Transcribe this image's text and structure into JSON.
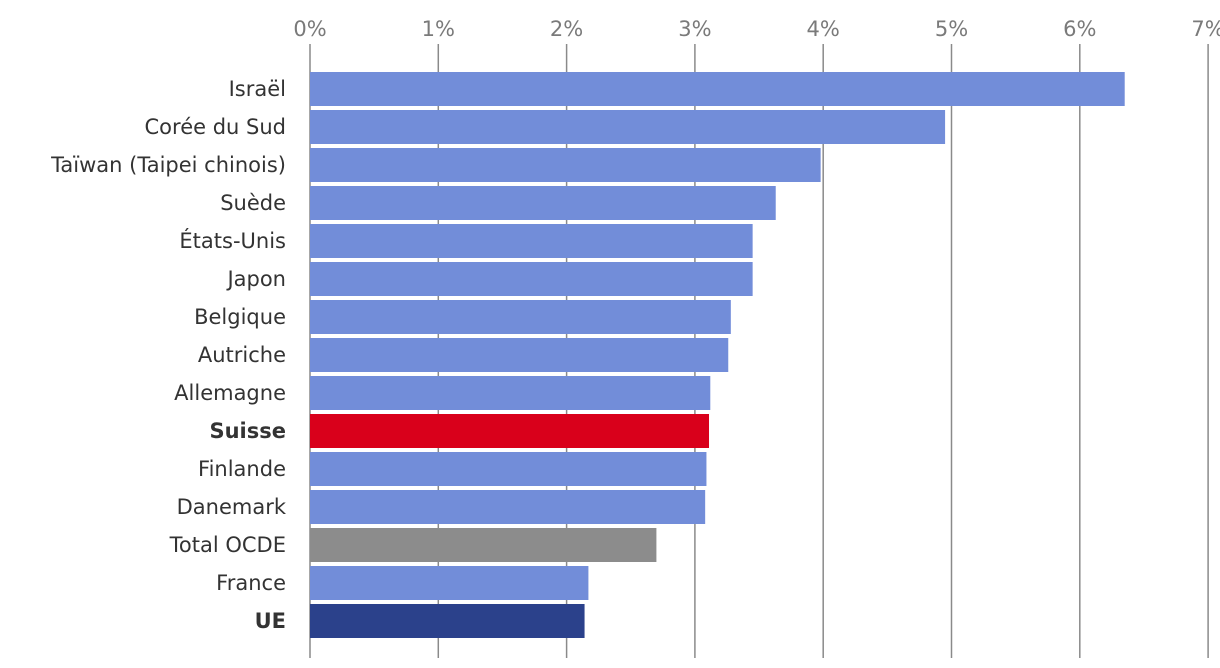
{
  "chart_data": {
    "type": "bar",
    "orientation": "horizontal",
    "title": "",
    "xlabel": "",
    "ylabel": "",
    "xlim": [
      0,
      7
    ],
    "x_ticks": [
      0,
      1,
      2,
      3,
      4,
      5,
      6,
      7
    ],
    "x_tick_labels": [
      "0%",
      "1%",
      "2%",
      "3%",
      "4%",
      "5%",
      "6%",
      "7%"
    ],
    "x_axis_position": "top",
    "grid": true,
    "legend": "none",
    "categories": [
      "Israël",
      "Corée du Sud",
      "Taïwan (Taipei chinois)",
      "Suède",
      "États-Unis",
      "Japon",
      "Belgique",
      "Autriche",
      "Allemagne",
      "Suisse",
      "Finlande",
      "Danemark",
      "Total OCDE",
      "France",
      "UE"
    ],
    "values": [
      6.35,
      4.95,
      3.98,
      3.63,
      3.45,
      3.45,
      3.28,
      3.26,
      3.12,
      3.11,
      3.09,
      3.08,
      2.7,
      2.17,
      2.14
    ],
    "bar_colors": [
      "#728dd9",
      "#728dd9",
      "#728dd9",
      "#728dd9",
      "#728dd9",
      "#728dd9",
      "#728dd9",
      "#728dd9",
      "#728dd9",
      "#d9001b",
      "#728dd9",
      "#728dd9",
      "#8c8c8c",
      "#728dd9",
      "#2b418b"
    ],
    "bold_categories": [
      "Suisse",
      "UE"
    ]
  }
}
